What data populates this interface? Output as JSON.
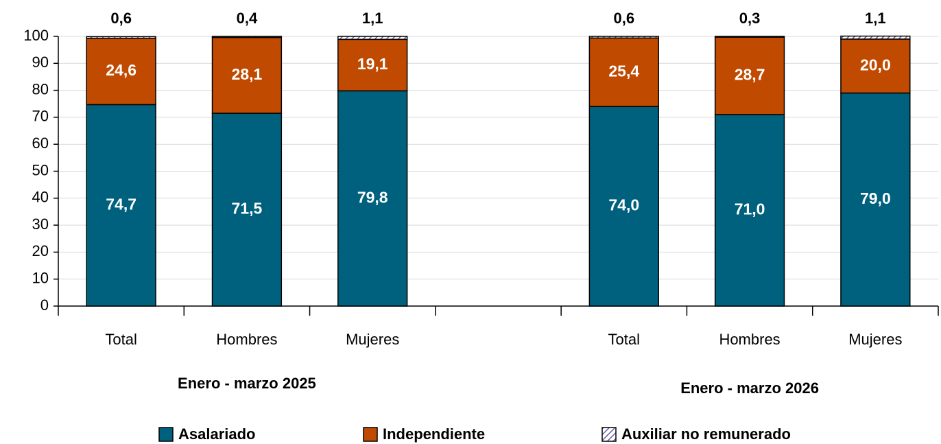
{
  "chart_data": {
    "type": "stacked_bar",
    "categories": [
      "Total",
      "Hombres",
      "Mujeres",
      null,
      "Total",
      "Hombres",
      "Mujeres"
    ],
    "group_labels": [
      "Enero - marzo 2025",
      "Enero - marzo 2026"
    ],
    "series": [
      {
        "name": "Asalariado",
        "color": "#00617f",
        "values": [
          74.7,
          71.5,
          79.8,
          null,
          74.0,
          71.0,
          79.0
        ],
        "value_labels": [
          "74,7",
          "71,5",
          "79,8",
          null,
          "74,0",
          "71,0",
          "79,0"
        ]
      },
      {
        "name": "Independiente",
        "color": "#c04a00",
        "values": [
          24.6,
          28.1,
          19.1,
          null,
          25.4,
          28.7,
          20.0
        ],
        "value_labels": [
          "24,6",
          "28,1",
          "19,1",
          null,
          "25,4",
          "28,7",
          "20,0"
        ]
      },
      {
        "name": "Auxiliar no remunerado",
        "color": "#6a5ca8",
        "pattern": "hatch",
        "values": [
          0.6,
          0.4,
          1.1,
          null,
          0.6,
          0.3,
          1.1
        ],
        "value_labels": [
          "0,6",
          "0,4",
          "1,1",
          null,
          "0,6",
          "0,3",
          "1,1"
        ]
      }
    ],
    "ylim": [
      0,
      100
    ],
    "yticks": [
      0,
      10,
      20,
      30,
      40,
      50,
      60,
      70,
      80,
      90,
      100
    ],
    "grid": true,
    "legend": "bottom"
  }
}
